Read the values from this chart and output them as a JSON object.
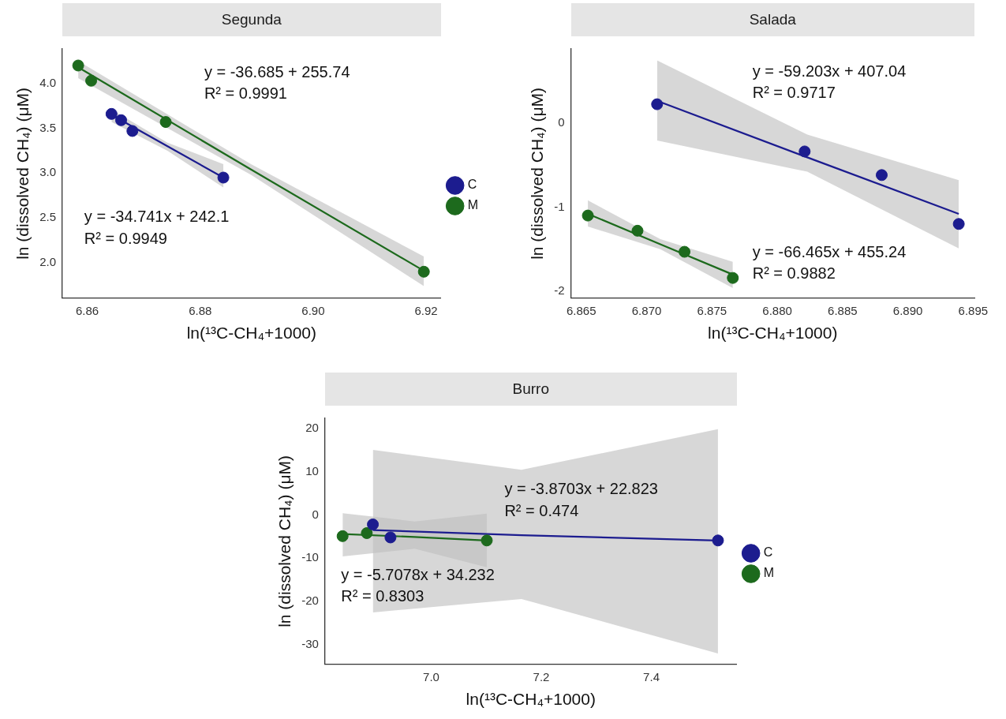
{
  "chart_data": [
    {
      "type": "scatter",
      "title": "Segunda",
      "xlabel": "ln(¹³C-CH₄+1000)",
      "ylabel": "ln (dissolved CH₄) (μM)",
      "xlim": [
        6.8556,
        6.9226
      ],
      "xticks": [
        6.86,
        6.88,
        {
          "value": 6.9,
          "label": "6.90"
        },
        6.92
      ],
      "ylim": [
        1.605,
        4.385
      ],
      "yticks": [
        {
          "value": 2,
          "label": "2.0"
        },
        2.5,
        {
          "value": 3,
          "label": "3.0"
        },
        3.5,
        {
          "value": 4,
          "label": "4.0"
        }
      ],
      "grid": false,
      "legend": "right",
      "marker": "circle",
      "series": [
        {
          "name": "C",
          "type": "scatter",
          "color": "#1c1c8f",
          "x": [
            6.8643,
            6.866,
            6.868,
            6.8841
          ],
          "values": [
            3.66,
            3.59,
            3.47,
            2.95
          ]
        },
        {
          "name": "M",
          "type": "scatter",
          "color": "#1d6a1d",
          "x": [
            6.8584,
            6.8607,
            6.8739,
            6.9196
          ],
          "values": [
            4.2,
            4.03,
            3.57,
            1.9
          ]
        },
        {
          "type": "line",
          "marker": "none",
          "color": "#1c1c8f",
          "x": [
            6.8643,
            6.8742,
            6.8841
          ],
          "values": [
            3.65,
            3.3,
            2.95
          ],
          "lower": [
            3.57,
            3.25,
            2.84
          ],
          "upper": [
            3.71,
            3.34,
            3.1
          ]
        },
        {
          "type": "line",
          "marker": "none",
          "color": "#1d6a1d",
          "x": [
            6.8584,
            6.889,
            6.9196
          ],
          "values": [
            4.18,
            3.04,
            1.91
          ],
          "lower": [
            4.06,
            2.98,
            1.74
          ],
          "upper": [
            4.25,
            3.1,
            2.07
          ]
        }
      ],
      "annotations": [
        "y = -36.685 + 255.74",
        "R² = 0.9991",
        "y = -34.741x + 242.1",
        "R² = 0.9949"
      ]
    },
    {
      "type": "scatter",
      "title": "Salada",
      "xlabel": "ln(¹³C-CH₄+1000)",
      "ylabel": "ln (dissolved CH₄) (μM)",
      "xlim": [
        6.8642,
        6.8951
      ],
      "xticks": [
        6.865,
        {
          "value": 6.87,
          "label": "6.870"
        },
        6.875,
        {
          "value": 6.88,
          "label": "6.880"
        },
        6.885,
        {
          "value": 6.89,
          "label": "6.890"
        },
        6.895
      ],
      "ylim": [
        -2.08,
        0.876
      ],
      "yticks": [
        -2,
        -1,
        0
      ],
      "grid": false,
      "marker": "circle",
      "series": [
        {
          "type": "scatter",
          "color": "#1c1c8f",
          "x": [
            6.8708,
            6.8821,
            6.888,
            6.8939
          ],
          "values": [
            0.22,
            -0.34,
            -0.62,
            -1.2
          ]
        },
        {
          "type": "scatter",
          "color": "#1d6a1d",
          "x": [
            6.8655,
            6.8693,
            6.8729,
            6.8766
          ],
          "values": [
            -1.1,
            -1.28,
            -1.53,
            -1.84
          ]
        },
        {
          "type": "line",
          "marker": "none",
          "color": "#1c1c8f",
          "x": [
            6.8708,
            6.8823,
            6.8939
          ],
          "values": [
            0.26,
            -0.41,
            -1.08
          ],
          "lower": [
            -0.21,
            -0.58,
            -1.49
          ],
          "upper": [
            0.74,
            -0.14,
            -0.68
          ]
        },
        {
          "type": "line",
          "marker": "none",
          "color": "#1d6a1d",
          "x": [
            6.8655,
            6.87105,
            6.8766
          ],
          "values": [
            -1.08,
            -1.44,
            -1.8
          ],
          "lower": [
            -1.23,
            -1.5,
            -1.96
          ],
          "upper": [
            -0.92,
            -1.38,
            -1.65
          ]
        }
      ],
      "annotations": [
        "y = -59.203x + 407.04",
        "R² = 0.9717",
        "y = -66.465x + 455.24",
        "R² = 0.9882"
      ]
    },
    {
      "type": "scatter",
      "title": "Burro",
      "xlabel": "ln(¹³C-CH₄+1000)",
      "ylabel": "ln (dissolved CH₄) (μM)",
      "xlim": [
        6.807,
        7.555
      ],
      "xticks": [
        {
          "value": 7,
          "label": "7.0"
        },
        7.2,
        7.4
      ],
      "ylim": [
        -34.5,
        22.3
      ],
      "yticks": [
        -30,
        -20,
        -10,
        0,
        10,
        20
      ],
      "grid": false,
      "legend": "right",
      "marker": "circle",
      "series": [
        {
          "name": "C",
          "type": "scatter",
          "color": "#1c1c8f",
          "x": [
            6.894,
            6.926,
            7.521
          ],
          "values": [
            -2.2,
            -5.2,
            -5.9
          ]
        },
        {
          "name": "M",
          "type": "scatter",
          "color": "#1d6a1d",
          "x": [
            6.839,
            6.883,
            7.101
          ],
          "values": [
            -4.9,
            -4.2,
            -5.9
          ]
        },
        {
          "type": "line",
          "marker": "none",
          "color": "#1c1c8f",
          "x": [
            6.894,
            7.164,
            7.521
          ],
          "values": [
            -3.5,
            -4.7,
            -5.9
          ],
          "lower": [
            -22.5,
            -19.4,
            -32
          ],
          "upper": [
            15,
            10.4,
            19.8
          ]
        },
        {
          "type": "line",
          "marker": "none",
          "color": "#1d6a1d",
          "x": [
            6.839,
            6.97,
            7.101
          ],
          "values": [
            -4.4,
            -5.1,
            -5.9
          ],
          "lower": [
            -9.6,
            -7.8,
            -12.1
          ],
          "upper": [
            0.4,
            -1.5,
            0.3
          ]
        }
      ],
      "annotations": [
        "y = -3.8703x + 22.823",
        "R² = 0.474",
        "y = -5.7078x + 34.232",
        "R² = 0.8303"
      ]
    }
  ]
}
